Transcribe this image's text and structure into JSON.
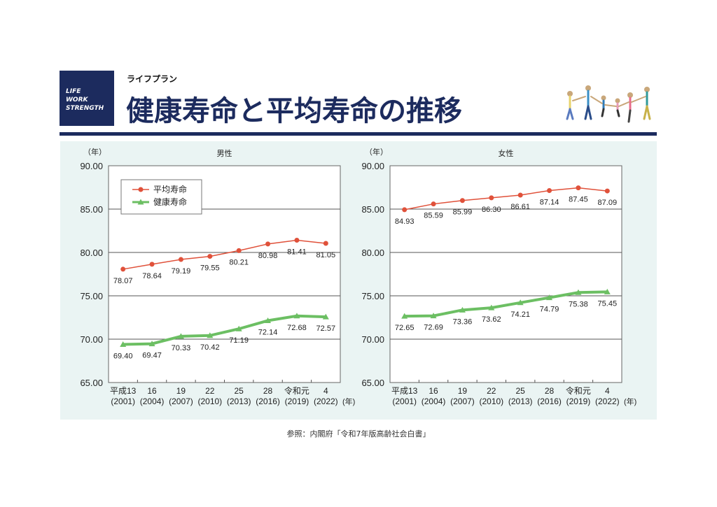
{
  "header": {
    "logo_lines": [
      "LIFE",
      "WORK",
      "STRENGTH"
    ],
    "subtitle": "ライフプラン",
    "title": "健康寿命と平均寿命の推移"
  },
  "source": "参照：内閣府「令和7年版高齢社会白書」",
  "colors": {
    "navy": "#1c2b5e",
    "average": "#e0513a",
    "healthy": "#6cbf63",
    "panel": "#eaf4f3"
  },
  "chart_data": [
    {
      "type": "line",
      "title": "男性",
      "ylabel": "（年）",
      "xunit": "(年)",
      "ylim": [
        65,
        90
      ],
      "yticks": [
        "65.00",
        "70.00",
        "75.00",
        "80.00",
        "85.00",
        "90.00"
      ],
      "categories": [
        [
          "平成13",
          "(2001)"
        ],
        [
          "16",
          "(2004)"
        ],
        [
          "19",
          "(2007)"
        ],
        [
          "22",
          "(2010)"
        ],
        [
          "25",
          "(2013)"
        ],
        [
          "28",
          "(2016)"
        ],
        [
          "令和元",
          "(2019)"
        ],
        [
          "4",
          "(2022)"
        ]
      ],
      "legend": "top-left",
      "series": [
        {
          "name": "平均寿命",
          "values": [
            78.07,
            78.64,
            79.19,
            79.55,
            80.21,
            80.98,
            81.41,
            81.05
          ]
        },
        {
          "name": "健康寿命",
          "values": [
            69.4,
            69.47,
            70.33,
            70.42,
            71.19,
            72.14,
            72.68,
            72.57
          ]
        }
      ]
    },
    {
      "type": "line",
      "title": "女性",
      "ylabel": "（年）",
      "xunit": "(年)",
      "ylim": [
        65,
        90
      ],
      "yticks": [
        "65.00",
        "70.00",
        "75.00",
        "80.00",
        "85.00",
        "90.00"
      ],
      "categories": [
        [
          "平成13",
          "(2001)"
        ],
        [
          "16",
          "(2004)"
        ],
        [
          "19",
          "(2007)"
        ],
        [
          "22",
          "(2010)"
        ],
        [
          "25",
          "(2013)"
        ],
        [
          "28",
          "(2016)"
        ],
        [
          "令和元",
          "(2019)"
        ],
        [
          "4",
          "(2022)"
        ]
      ],
      "series": [
        {
          "name": "平均寿命",
          "values": [
            84.93,
            85.59,
            85.99,
            86.3,
            86.61,
            87.14,
            87.45,
            87.09
          ]
        },
        {
          "name": "健康寿命",
          "values": [
            72.65,
            72.69,
            73.36,
            73.62,
            74.21,
            74.79,
            75.38,
            75.45
          ]
        }
      ]
    }
  ]
}
